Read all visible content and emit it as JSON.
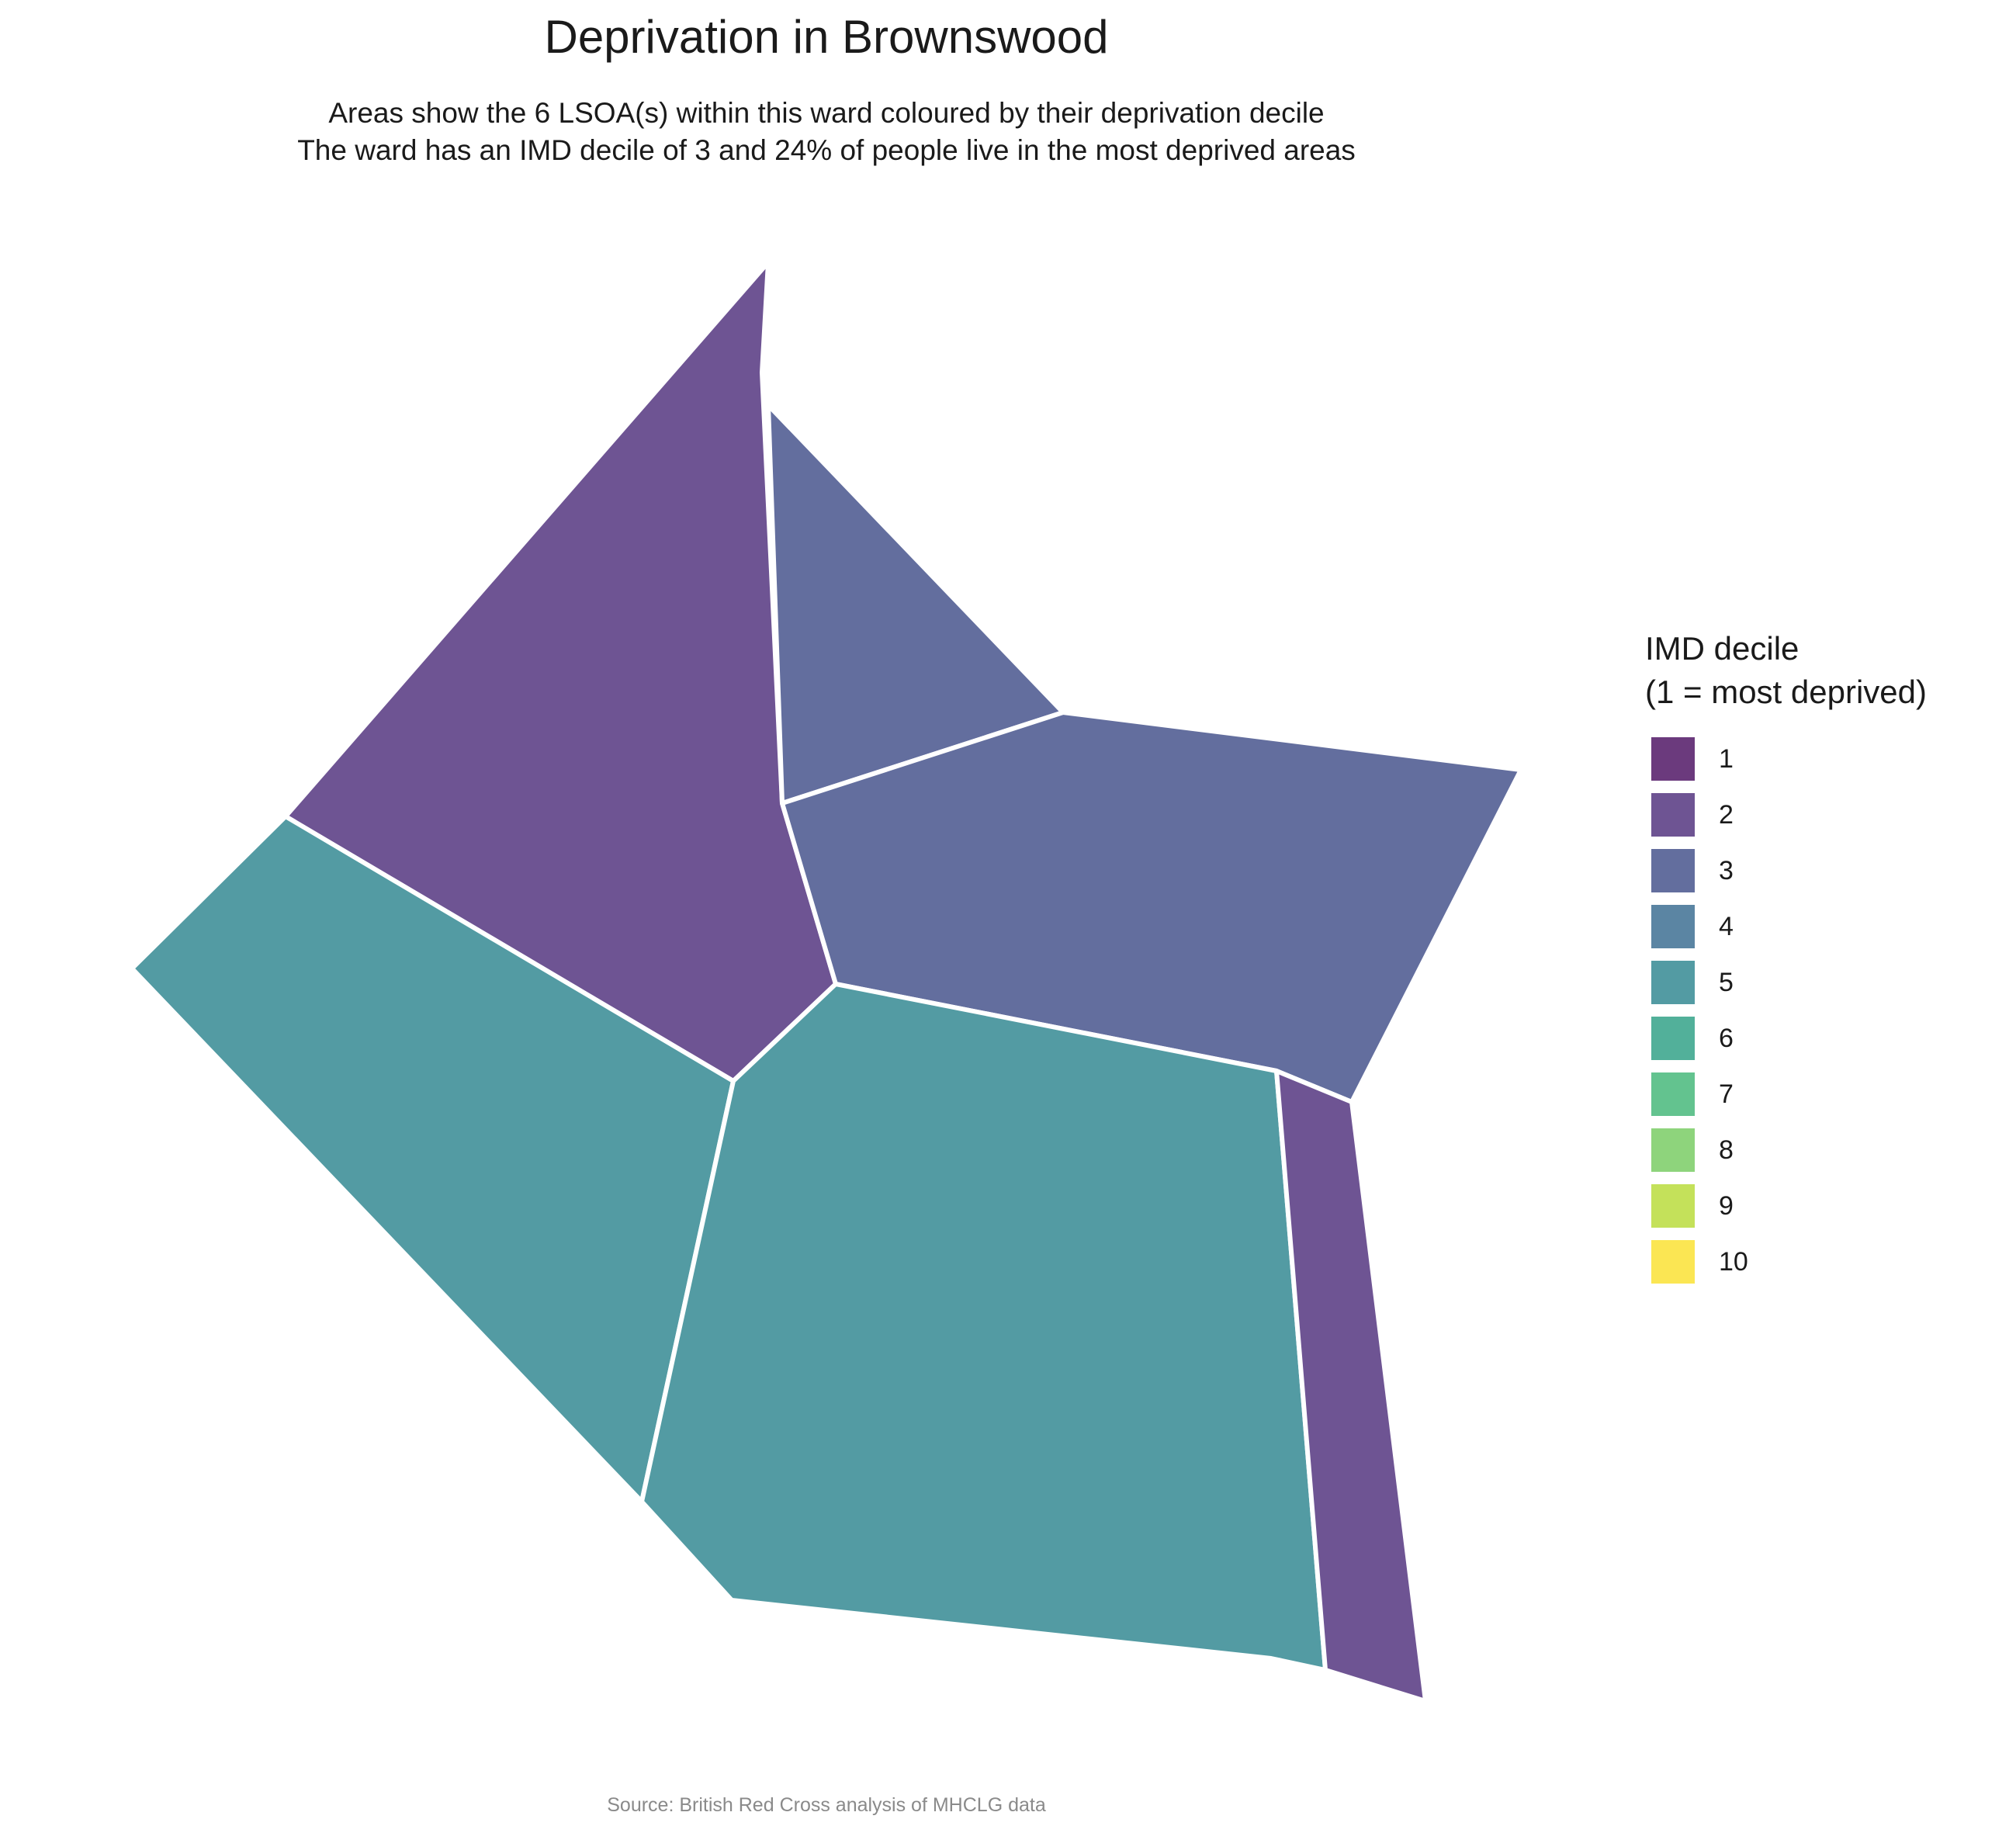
{
  "title": "Deprivation in Brownswood",
  "subtitle": {
    "line1": "Areas show the 6 LSOA(s) within this ward coloured by their deprivation decile",
    "line2": "The ward has an IMD decile of 3 and 24% of people live in the most deprived areas"
  },
  "legend": {
    "title_line1": "IMD decile",
    "title_line2": "(1 = most deprived)",
    "items": [
      {
        "label": "1",
        "color": "#6b3a7d"
      },
      {
        "label": "2",
        "color": "#6e5493"
      },
      {
        "label": "3",
        "color": "#636e9e"
      },
      {
        "label": "4",
        "color": "#5b85a3"
      },
      {
        "label": "5",
        "color": "#539ba3"
      },
      {
        "label": "6",
        "color": "#52b09a"
      },
      {
        "label": "7",
        "color": "#63c38f"
      },
      {
        "label": "8",
        "color": "#8ed47c"
      },
      {
        "label": "9",
        "color": "#c4e15a"
      },
      {
        "label": "10",
        "color": "#fbe653"
      }
    ]
  },
  "map": {
    "lsoas": [
      {
        "decile": 2,
        "color": "#6e5493"
      },
      {
        "decile": 3,
        "color": "#636e9e"
      },
      {
        "decile": 3,
        "color": "#636e9e"
      },
      {
        "decile": 5,
        "color": "#539ba3"
      },
      {
        "decile": 5,
        "color": "#539ba3"
      },
      {
        "decile": 2,
        "color": "#6e5493"
      }
    ]
  },
  "caption": "Source: British Red Cross analysis of MHCLG data"
}
